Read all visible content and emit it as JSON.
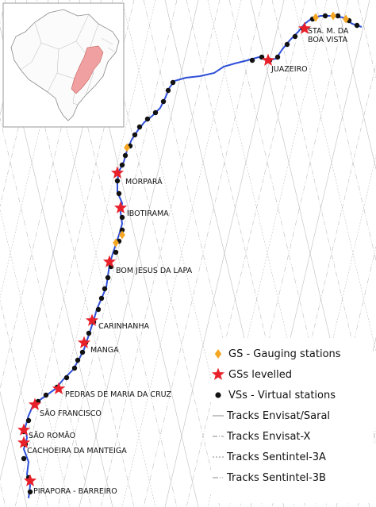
{
  "map": {
    "colors": {
      "river": "#2f4fd8",
      "gauging_station": "#f5a623",
      "levelled_star": "#e8202a",
      "virtual_station": "#111111",
      "track": "#b8b8b8",
      "inset_highlight": "#f0a0a0"
    },
    "towns": [
      {
        "id": "sta-maria-da-boa-vista",
        "lines": [
          "STA. M. DA",
          "BOA VISTA"
        ]
      },
      {
        "id": "juazeiro",
        "lines": [
          "JUAZEIRO"
        ]
      },
      {
        "id": "morpara",
        "lines": [
          "MORPARÁ"
        ]
      },
      {
        "id": "ibotirama",
        "lines": [
          "IBOTIRAMA"
        ]
      },
      {
        "id": "bom-jesus-da-lapa",
        "lines": [
          "BOM JESUS DA LAPA"
        ]
      },
      {
        "id": "carinhanha",
        "lines": [
          "CARINHANHA"
        ]
      },
      {
        "id": "manga",
        "lines": [
          "MANGA"
        ]
      },
      {
        "id": "pedras-de-maria-da-cruz",
        "lines": [
          "PEDRAS DE MARIA DA CRUZ"
        ]
      },
      {
        "id": "sao-francisco",
        "lines": [
          "SÃO FRANCISCO"
        ]
      },
      {
        "id": "sao-romao",
        "lines": [
          "SÃO ROMÃO"
        ]
      },
      {
        "id": "cachoeira-da-manteiga",
        "lines": [
          "CACHOEIRA DA MANTEIGA"
        ]
      },
      {
        "id": "pirapora-barreiro",
        "lines": [
          "PIRAPORA - BARREIRO"
        ]
      }
    ],
    "legend": [
      {
        "symbol": "gauging-diamond",
        "label": "GS - Gauging stations"
      },
      {
        "symbol": "levelled-star",
        "label": "GSs levelled"
      },
      {
        "symbol": "virtual-dot",
        "label": "VSs - Virtual stations"
      },
      {
        "symbol": "track-solid",
        "label": "Tracks Envisat/Saral"
      },
      {
        "symbol": "track-dashdot",
        "label": "Tracks Envisat-X"
      },
      {
        "symbol": "track-dotted",
        "label": "Tracks Sentintel-3A"
      },
      {
        "symbol": "track-dashdotdot",
        "label": "Tracks Sentintel-3B"
      }
    ]
  }
}
